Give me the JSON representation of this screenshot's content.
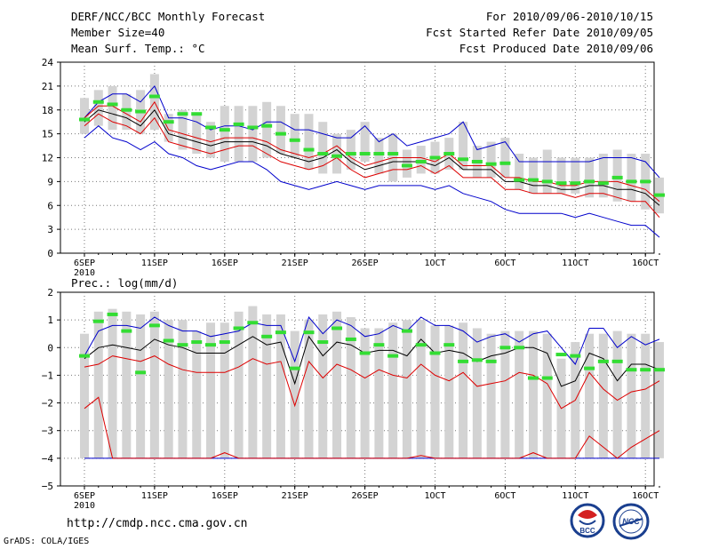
{
  "header": {
    "title": "DERF/NCC/BCC Monthly Forecast",
    "member": "Member Size=40",
    "variable": "Mean Surf. Temp.: °C",
    "period": "For 2010/09/06-2010/10/15",
    "started": "Fcst Started Refer Date 2010/09/05",
    "produced": "Fcst Produced Date 2010/09/06"
  },
  "footer": {
    "url": "http://cmdp.ncc.cma.gov.cn",
    "grads": "GrADS: COLA/IGES",
    "logo_left_text": "BCC",
    "logo_right_text": "NCC"
  },
  "colors": {
    "blue": "#0000cc",
    "red": "#dd0000",
    "black": "#000000",
    "green": "#33dd33",
    "gray": "#d3d3d3"
  },
  "chart_data": [
    {
      "type": "box-ensemble",
      "title": "Mean Surf. Temp.: °C",
      "ylim": [
        0,
        24
      ],
      "yticks": [
        0,
        3,
        6,
        9,
        12,
        15,
        18,
        21,
        24
      ],
      "xticks": [
        {
          "day": 1,
          "label": "6SEP",
          "sub": "2010"
        },
        {
          "day": 6,
          "label": "11SEP"
        },
        {
          "day": 11,
          "label": "16SEP"
        },
        {
          "day": 16,
          "label": "21SEP"
        },
        {
          "day": 21,
          "label": "26SEP"
        },
        {
          "day": 26,
          "label": "1OCT"
        },
        {
          "day": 31,
          "label": "6OCT"
        },
        {
          "day": 36,
          "label": "11OCT"
        },
        {
          "day": 41,
          "label": "16OCT"
        }
      ],
      "box_low": [
        15.0,
        16.0,
        15.5,
        15.5,
        15.0,
        15.5,
        14.0,
        13.0,
        12.5,
        12.0,
        11.5,
        11.5,
        11.5,
        12.0,
        12.5,
        12.0,
        10.5,
        10.0,
        10.0,
        10.5,
        11.5,
        10.0,
        9.0,
        9.5,
        10.0,
        10.0,
        10.5,
        10.5,
        9.5,
        9.5,
        9.5,
        8.0,
        7.5,
        7.5,
        7.5,
        7.5,
        7.0,
        7.0,
        6.5,
        6.5,
        5.5,
        5.0
      ],
      "box_high": [
        19.5,
        20.5,
        21.0,
        20.0,
        20.5,
        22.5,
        17.5,
        18.0,
        17.5,
        16.5,
        18.5,
        18.5,
        18.5,
        19.0,
        18.5,
        17.5,
        17.5,
        16.5,
        15.0,
        15.5,
        16.5,
        14.5,
        15.0,
        13.0,
        13.5,
        14.0,
        14.5,
        16.5,
        13.5,
        14.0,
        14.5,
        12.5,
        12.0,
        13.0,
        12.0,
        12.0,
        12.0,
        12.5,
        13.0,
        12.5,
        12.5,
        9.5
      ],
      "blue_upper": [
        17.0,
        19.0,
        20.0,
        20.0,
        19.0,
        21.0,
        17.0,
        17.0,
        16.5,
        15.5,
        16.0,
        16.0,
        15.5,
        16.5,
        16.5,
        15.5,
        15.5,
        15.0,
        14.5,
        14.5,
        16.0,
        14.0,
        15.0,
        13.5,
        14.0,
        14.5,
        15.0,
        16.5,
        13.0,
        13.5,
        14.0,
        11.5,
        11.5,
        11.5,
        11.5,
        11.5,
        11.5,
        12.0,
        12.0,
        12.0,
        11.5,
        9.5
      ],
      "red_upper": [
        17.0,
        18.5,
        18.5,
        17.5,
        16.5,
        19.0,
        15.5,
        15.0,
        14.5,
        14.0,
        14.5,
        14.5,
        14.5,
        14.0,
        13.0,
        12.5,
        12.0,
        12.5,
        13.5,
        12.0,
        11.0,
        11.5,
        12.0,
        12.0,
        12.0,
        11.5,
        12.5,
        11.0,
        11.0,
        11.0,
        9.5,
        9.5,
        9.0,
        9.0,
        8.5,
        8.5,
        9.0,
        9.0,
        9.0,
        8.5,
        8.0,
        6.5
      ],
      "mean": [
        16.5,
        18.0,
        17.5,
        17.0,
        16.0,
        18.0,
        15.0,
        14.5,
        14.0,
        13.5,
        14.0,
        14.0,
        14.0,
        13.5,
        12.5,
        12.0,
        11.5,
        12.0,
        13.0,
        11.5,
        10.5,
        11.0,
        11.5,
        11.5,
        11.5,
        11.0,
        12.0,
        10.5,
        10.5,
        10.5,
        9.0,
        9.0,
        8.5,
        8.5,
        8.0,
        8.0,
        8.5,
        8.5,
        8.0,
        8.0,
        7.5,
        6.0
      ],
      "red_lower": [
        16.0,
        17.5,
        16.5,
        16.0,
        15.0,
        17.0,
        14.0,
        13.5,
        13.0,
        12.5,
        13.0,
        13.5,
        13.5,
        12.5,
        11.5,
        11.0,
        10.5,
        11.0,
        12.0,
        10.5,
        9.5,
        10.0,
        10.5,
        10.5,
        11.0,
        10.0,
        11.0,
        9.5,
        9.5,
        9.5,
        8.0,
        8.0,
        7.5,
        7.5,
        7.5,
        7.0,
        7.5,
        7.5,
        7.0,
        6.5,
        6.5,
        4.5
      ],
      "blue_lower": [
        14.5,
        16.0,
        14.5,
        14.0,
        13.0,
        14.0,
        12.5,
        12.0,
        11.0,
        10.5,
        11.0,
        11.5,
        11.5,
        10.5,
        9.0,
        8.5,
        8.0,
        8.5,
        9.0,
        8.5,
        8.0,
        8.5,
        8.5,
        8.5,
        8.5,
        8.0,
        8.5,
        7.5,
        7.0,
        6.5,
        5.5,
        5.0,
        5.0,
        5.0,
        5.0,
        4.5,
        5.0,
        4.5,
        4.0,
        3.5,
        3.5,
        2.0
      ],
      "green_ticks": [
        16.8,
        19.0,
        18.7,
        18.0,
        17.8,
        19.7,
        16.5,
        17.5,
        17.5,
        15.8,
        15.5,
        16.2,
        15.8,
        16.0,
        15.0,
        14.2,
        13.0,
        12.5,
        12.2,
        12.5,
        12.5,
        12.5,
        12.5,
        11.0,
        11.5,
        12.0,
        12.5,
        11.8,
        11.5,
        11.2,
        11.3,
        9.2,
        9.2,
        9.0,
        8.8,
        8.8,
        9.0,
        8.8,
        9.5,
        9.0,
        9.0,
        7.3
      ]
    },
    {
      "type": "box-ensemble",
      "title": "Prec.: log(mm/d)",
      "ylim": [
        -5,
        2
      ],
      "yticks": [
        -5,
        -4,
        -3,
        -2,
        -1,
        0,
        1,
        2
      ],
      "xticks": [
        {
          "day": 1,
          "label": "6SEP",
          "sub": "2010"
        },
        {
          "day": 6,
          "label": "11SEP"
        },
        {
          "day": 11,
          "label": "16SEP"
        },
        {
          "day": 16,
          "label": "21SEP"
        },
        {
          "day": 21,
          "label": "26SEP"
        },
        {
          "day": 26,
          "label": "1OCT"
        },
        {
          "day": 31,
          "label": "6OCT"
        },
        {
          "day": 36,
          "label": "11OCT"
        },
        {
          "day": 41,
          "label": "16OCT"
        }
      ],
      "box_low": [
        -4,
        -4,
        -4,
        -4,
        -4,
        -4,
        -4,
        -4,
        -4,
        -4,
        -4,
        -4,
        -4,
        -4,
        -4,
        -4,
        -4,
        -4,
        -4,
        -4,
        -4,
        -4,
        -4,
        -4,
        -4,
        -4,
        -4,
        -4,
        -4,
        -4,
        -4,
        -4,
        -4,
        -4,
        -4,
        -4,
        -4,
        -4,
        -4,
        -4,
        -4,
        -4
      ],
      "box_high": [
        0.5,
        1.3,
        1.4,
        1.3,
        1.2,
        1.3,
        1.0,
        1.0,
        0.6,
        0.9,
        0.9,
        1.3,
        1.5,
        1.2,
        1.2,
        0.6,
        1.0,
        1.2,
        1.3,
        1.1,
        0.7,
        0.7,
        0.9,
        1.0,
        1.0,
        0.8,
        0.8,
        0.9,
        0.7,
        0.5,
        0.6,
        0.6,
        0.6,
        0.5,
        -0.4,
        0.2,
        0.5,
        0.5,
        0.6,
        0.5,
        0.5,
        0.2
      ],
      "blue_upper": [
        -0.3,
        0.6,
        0.8,
        0.8,
        0.7,
        1.1,
        0.8,
        0.6,
        0.6,
        0.4,
        0.5,
        0.6,
        0.9,
        0.8,
        0.8,
        -0.5,
        1.1,
        0.5,
        1.0,
        0.8,
        0.4,
        0.5,
        0.8,
        0.6,
        1.1,
        0.8,
        0.8,
        0.6,
        0.2,
        0.4,
        0.5,
        0.2,
        0.5,
        0.6,
        0.0,
        -0.6,
        0.7,
        0.7,
        0.0,
        0.4,
        0.1,
        0.3
      ],
      "mean": [
        -0.4,
        0.0,
        0.1,
        0.0,
        -0.1,
        0.3,
        0.1,
        0.0,
        -0.2,
        -0.2,
        -0.2,
        0.1,
        0.4,
        0.1,
        0.2,
        -1.3,
        0.4,
        -0.3,
        0.2,
        0.1,
        -0.2,
        -0.1,
        -0.1,
        -0.3,
        0.3,
        -0.2,
        -0.1,
        -0.2,
        -0.5,
        -0.3,
        -0.2,
        0.0,
        0.0,
        -0.2,
        -1.4,
        -1.2,
        -0.2,
        -0.4,
        -1.2,
        -0.6,
        -0.6,
        -0.8
      ],
      "red_upper": [
        -0.7,
        -0.6,
        -0.3,
        -0.4,
        -0.5,
        -0.3,
        -0.6,
        -0.8,
        -0.9,
        -0.9,
        -0.9,
        -0.7,
        -0.4,
        -0.6,
        -0.5,
        -2.1,
        -0.5,
        -1.1,
        -0.6,
        -0.8,
        -1.1,
        -0.8,
        -1.0,
        -1.1,
        -0.6,
        -1.0,
        -1.2,
        -0.9,
        -1.4,
        -1.3,
        -1.2,
        -0.9,
        -1.0,
        -1.3,
        -2.2,
        -1.9,
        -0.9,
        -1.5,
        -1.9,
        -1.6,
        -1.5,
        -1.2
      ],
      "red_lower": [
        -2.2,
        -1.8,
        -4.0,
        -4.0,
        -4.0,
        -4.0,
        -4.0,
        -4.0,
        -4.0,
        -4.0,
        -3.8,
        -4.0,
        -4.0,
        -4.0,
        -4.0,
        -4.0,
        -4.0,
        -4.0,
        -4.0,
        -4.0,
        -4.0,
        -4.0,
        -4.0,
        -4.0,
        -3.9,
        -4.0,
        -4.0,
        -4.0,
        -4.0,
        -4.0,
        -4.0,
        -4.0,
        -3.8,
        -4.0,
        -4.0,
        -4.0,
        -3.2,
        -3.6,
        -4.0,
        -3.6,
        -3.3,
        -3.0
      ],
      "blue_lower": [
        -4,
        -4,
        -4,
        -4,
        -4,
        -4,
        -4,
        -4,
        -4,
        -4,
        -4,
        -4,
        -4,
        -4,
        -4,
        -4,
        -4,
        -4,
        -4,
        -4,
        -4,
        -4,
        -4,
        -4,
        -4,
        -4,
        -4,
        -4,
        -4,
        -4,
        -4,
        -4,
        -4,
        -4,
        -4,
        -4,
        -4,
        -4,
        -4,
        -4,
        -4,
        -4
      ],
      "green_ticks": [
        -0.3,
        0.95,
        1.2,
        0.6,
        -0.9,
        0.8,
        0.25,
        0.1,
        0.2,
        0.1,
        0.2,
        0.7,
        0.9,
        0.4,
        0.55,
        -0.75,
        0.55,
        0.2,
        0.7,
        0.3,
        -0.2,
        0.1,
        -0.3,
        0.6,
        0.1,
        -0.2,
        0.1,
        -0.5,
        -0.45,
        -0.5,
        0.0,
        0.0,
        -1.1,
        -1.1,
        -0.25,
        -0.3,
        -0.75,
        -0.5,
        -0.5,
        -0.8,
        -0.8,
        -0.8
      ]
    }
  ]
}
